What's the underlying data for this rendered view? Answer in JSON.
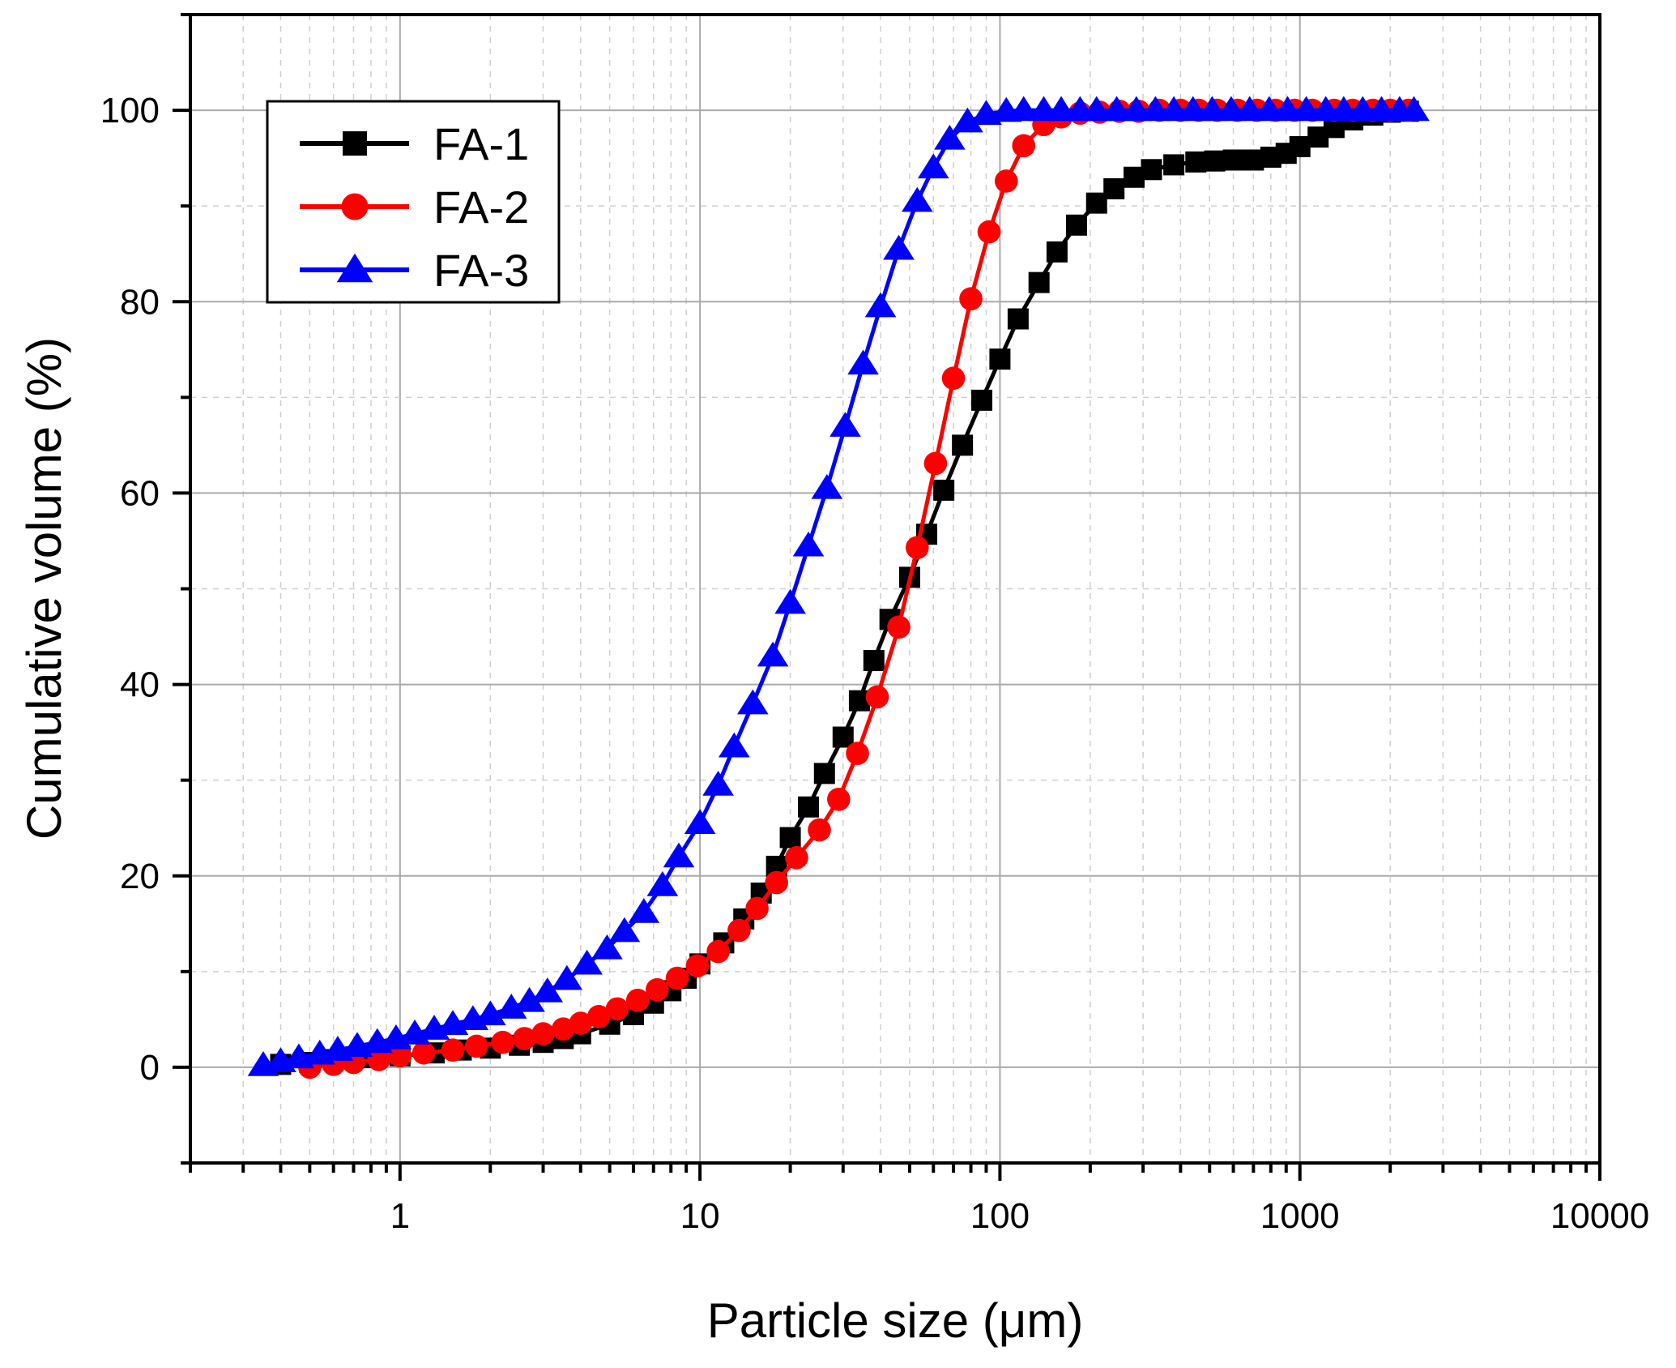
{
  "chart_data": {
    "type": "line",
    "title": "",
    "xlabel": "Particle size (μm)",
    "ylabel": "Cumulative volume (%)",
    "xscale": "log",
    "xlim": [
      0.2,
      10000
    ],
    "ylim": [
      -10,
      110
    ],
    "grid": true,
    "legend_position": "top-left",
    "x_ticks": [
      {
        "value": 1,
        "label": "1"
      },
      {
        "value": 10,
        "label": "10"
      },
      {
        "value": 100,
        "label": "100"
      },
      {
        "value": 1000,
        "label": "1000"
      },
      {
        "value": 10000,
        "label": "10000"
      }
    ],
    "y_ticks": [
      {
        "value": 0,
        "label": "0"
      },
      {
        "value": 20,
        "label": "20"
      },
      {
        "value": 40,
        "label": "40"
      },
      {
        "value": 60,
        "label": "60"
      },
      {
        "value": 80,
        "label": "80"
      },
      {
        "value": 100,
        "label": "100"
      }
    ],
    "series": [
      {
        "name": "FA-1",
        "color": "#000000",
        "marker": "square",
        "points": [
          [
            0.4,
            0.3
          ],
          [
            0.5,
            0.5
          ],
          [
            0.6,
            0.8
          ],
          [
            0.8,
            1.0
          ],
          [
            1.0,
            1.2
          ],
          [
            1.3,
            1.5
          ],
          [
            1.6,
            1.8
          ],
          [
            2.0,
            2.0
          ],
          [
            2.5,
            2.3
          ],
          [
            3.0,
            2.6
          ],
          [
            3.5,
            3.0
          ],
          [
            4.0,
            3.5
          ],
          [
            5.0,
            4.5
          ],
          [
            6.0,
            5.5
          ],
          [
            7.0,
            6.7
          ],
          [
            8.0,
            8.0
          ],
          [
            9.0,
            9.3
          ],
          [
            10.0,
            10.8
          ],
          [
            12.0,
            13.0
          ],
          [
            14.0,
            15.5
          ],
          [
            16.0,
            18.2
          ],
          [
            18.0,
            21.0
          ],
          [
            20.0,
            24.0
          ],
          [
            23.0,
            27.2
          ],
          [
            26.0,
            30.7
          ],
          [
            30.0,
            34.5
          ],
          [
            34.0,
            38.3
          ],
          [
            38.0,
            42.5
          ],
          [
            43.0,
            46.8
          ],
          [
            50.0,
            51.2
          ],
          [
            57.0,
            55.7
          ],
          [
            65.0,
            60.3
          ],
          [
            75.0,
            65.0
          ],
          [
            87.0,
            69.7
          ],
          [
            100.0,
            74.0
          ],
          [
            115.0,
            78.2
          ],
          [
            135.0,
            82.0
          ],
          [
            155.0,
            85.2
          ],
          [
            180.0,
            88.0
          ],
          [
            210.0,
            90.3
          ],
          [
            240.0,
            91.8
          ],
          [
            280.0,
            93.0
          ],
          [
            320.0,
            93.8
          ],
          [
            380.0,
            94.3
          ],
          [
            450.0,
            94.6
          ],
          [
            520.0,
            94.7
          ],
          [
            600.0,
            94.8
          ],
          [
            700.0,
            94.8
          ],
          [
            800.0,
            95.1
          ],
          [
            900.0,
            95.5
          ],
          [
            1000.0,
            96.2
          ],
          [
            1150.0,
            97.2
          ],
          [
            1300.0,
            98.2
          ],
          [
            1500.0,
            99.0
          ],
          [
            1750.0,
            99.5
          ],
          [
            2000.0,
            99.8
          ],
          [
            2300.0,
            99.9
          ]
        ]
      },
      {
        "name": "FA-2",
        "color": "#ff0000",
        "marker": "circle",
        "points": [
          [
            0.5,
            0.0
          ],
          [
            0.6,
            0.3
          ],
          [
            0.7,
            0.5
          ],
          [
            0.85,
            0.8
          ],
          [
            1.0,
            1.2
          ],
          [
            1.2,
            1.5
          ],
          [
            1.5,
            1.8
          ],
          [
            1.8,
            2.2
          ],
          [
            2.2,
            2.6
          ],
          [
            2.6,
            3.0
          ],
          [
            3.0,
            3.5
          ],
          [
            3.5,
            4.0
          ],
          [
            4.0,
            4.6
          ],
          [
            4.6,
            5.3
          ],
          [
            5.3,
            6.1
          ],
          [
            6.2,
            7.0
          ],
          [
            7.2,
            8.1
          ],
          [
            8.4,
            9.3
          ],
          [
            9.8,
            10.6
          ],
          [
            11.5,
            12.1
          ],
          [
            13.5,
            14.3
          ],
          [
            15.5,
            16.6
          ],
          [
            18.0,
            19.3
          ],
          [
            21.0,
            21.9
          ],
          [
            25.0,
            24.8
          ],
          [
            29.0,
            28.0
          ],
          [
            33.5,
            32.8
          ],
          [
            39.0,
            38.7
          ],
          [
            46.0,
            46.0
          ],
          [
            53.0,
            54.3
          ],
          [
            61.0,
            63.1
          ],
          [
            70.0,
            72.0
          ],
          [
            80.0,
            80.3
          ],
          [
            92.0,
            87.3
          ],
          [
            105.0,
            92.6
          ],
          [
            120.0,
            96.3
          ],
          [
            140.0,
            98.5
          ],
          [
            160.0,
            99.3
          ],
          [
            185.0,
            99.7
          ],
          [
            215.0,
            99.8
          ],
          [
            250.0,
            99.9
          ],
          [
            290.0,
            99.9
          ],
          [
            340.0,
            100
          ],
          [
            400.0,
            100
          ],
          [
            460.0,
            100
          ],
          [
            530.0,
            100
          ],
          [
            620.0,
            100
          ],
          [
            720.0,
            100
          ],
          [
            830.0,
            100
          ],
          [
            960.0,
            100
          ],
          [
            1100.0,
            100
          ],
          [
            1300.0,
            100
          ],
          [
            1500.0,
            100
          ],
          [
            1750.0,
            100
          ],
          [
            2000.0,
            100
          ],
          [
            2300.0,
            100
          ]
        ]
      },
      {
        "name": "FA-3",
        "color": "#0000ff",
        "marker": "triangle",
        "points": [
          [
            0.35,
            0.2
          ],
          [
            0.4,
            0.6
          ],
          [
            0.46,
            1.0
          ],
          [
            0.54,
            1.4
          ],
          [
            0.62,
            1.8
          ],
          [
            0.72,
            2.2
          ],
          [
            0.84,
            2.6
          ],
          [
            0.97,
            3.0
          ],
          [
            1.12,
            3.5
          ],
          [
            1.3,
            4.0
          ],
          [
            1.5,
            4.5
          ],
          [
            1.75,
            5.0
          ],
          [
            2.0,
            5.5
          ],
          [
            2.35,
            6.2
          ],
          [
            2.7,
            6.9
          ],
          [
            3.1,
            7.9
          ],
          [
            3.6,
            9.2
          ],
          [
            4.2,
            10.8
          ],
          [
            4.9,
            12.4
          ],
          [
            5.6,
            14.2
          ],
          [
            6.5,
            16.2
          ],
          [
            7.5,
            19.0
          ],
          [
            8.5,
            22.0
          ],
          [
            10.0,
            25.5
          ],
          [
            11.5,
            29.5
          ],
          [
            13.0,
            33.5
          ],
          [
            15.0,
            38.0
          ],
          [
            17.5,
            43.0
          ],
          [
            20.0,
            48.5
          ],
          [
            23.0,
            54.5
          ],
          [
            26.5,
            60.5
          ],
          [
            30.5,
            67.0
          ],
          [
            35.0,
            73.5
          ],
          [
            40.0,
            79.5
          ],
          [
            46.0,
            85.5
          ],
          [
            53.0,
            90.5
          ],
          [
            60.0,
            94.0
          ],
          [
            68.0,
            97.0
          ],
          [
            78.0,
            98.8
          ],
          [
            90.0,
            99.6
          ],
          [
            105.0,
            99.9
          ],
          [
            120.0,
            100
          ],
          [
            140.0,
            100
          ],
          [
            160.0,
            100
          ],
          [
            185.0,
            100
          ],
          [
            210.0,
            100
          ],
          [
            245.0,
            100
          ],
          [
            285.0,
            100
          ],
          [
            330.0,
            100
          ],
          [
            380.0,
            100
          ],
          [
            440.0,
            100
          ],
          [
            510.0,
            100
          ],
          [
            590.0,
            100
          ],
          [
            680.0,
            100
          ],
          [
            790.0,
            100
          ],
          [
            910.0,
            100
          ],
          [
            1050.0,
            100
          ],
          [
            1220.0,
            100
          ],
          [
            1400.0,
            100
          ],
          [
            1620.0,
            100
          ],
          [
            1870.0,
            100
          ],
          [
            2150.0,
            100
          ],
          [
            2400.0,
            100
          ]
        ]
      }
    ]
  }
}
